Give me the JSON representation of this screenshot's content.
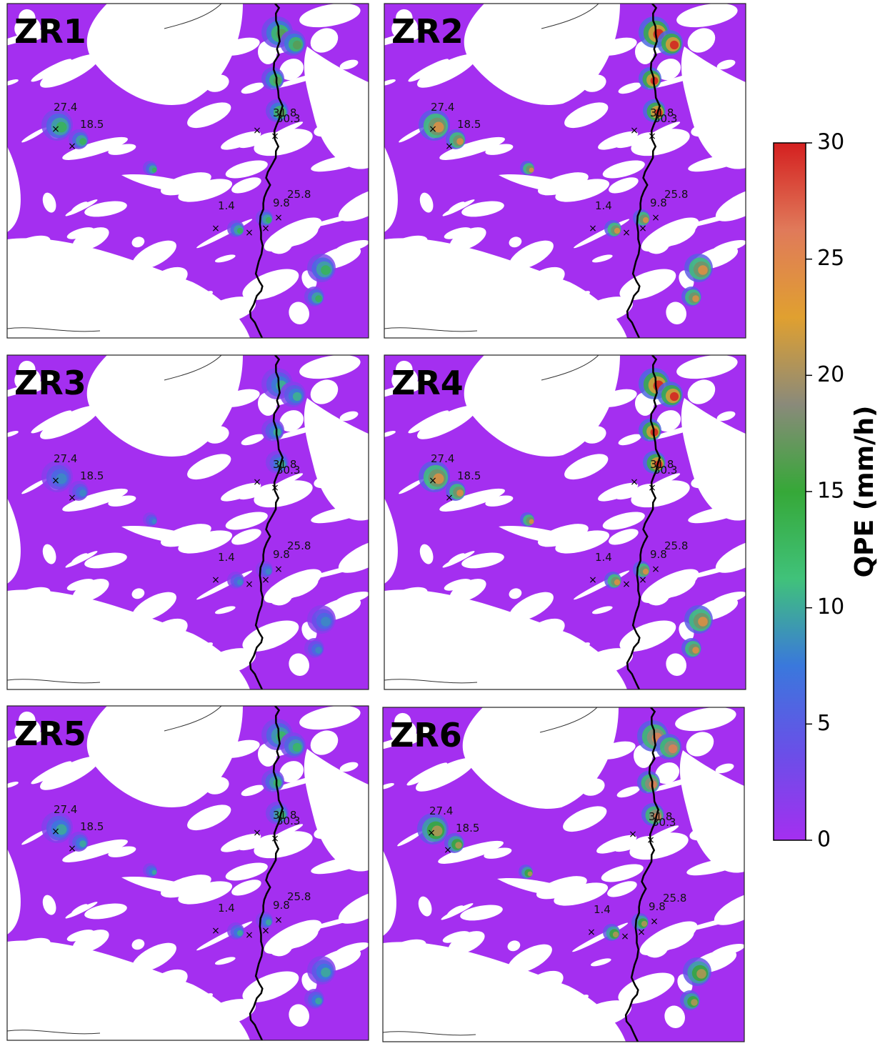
{
  "panels": [
    {
      "title": "ZR1"
    },
    {
      "title": "ZR2"
    },
    {
      "title": "ZR3"
    },
    {
      "title": "ZR4"
    },
    {
      "title": "ZR5"
    },
    {
      "title": "ZR6"
    }
  ],
  "gauges": [
    {
      "label": "27.4"
    },
    {
      "label": "18.5"
    },
    {
      "label": "31.8"
    },
    {
      "label": "30.3"
    },
    {
      "label": "25.8"
    },
    {
      "label": "1.4"
    },
    {
      "label": "9.8"
    }
  ],
  "colorbar": {
    "label": "QPE (mm/h)",
    "clim": [
      0,
      30
    ],
    "ticks": [
      0,
      5,
      10,
      15,
      20,
      25,
      30
    ],
    "colors": [
      "#a42ff0",
      "#6a4fe8",
      "#3a78dc",
      "#40c27a",
      "#36a838",
      "#8a8a7a",
      "#e0a030",
      "#e07a5a",
      "#d42020"
    ]
  }
}
